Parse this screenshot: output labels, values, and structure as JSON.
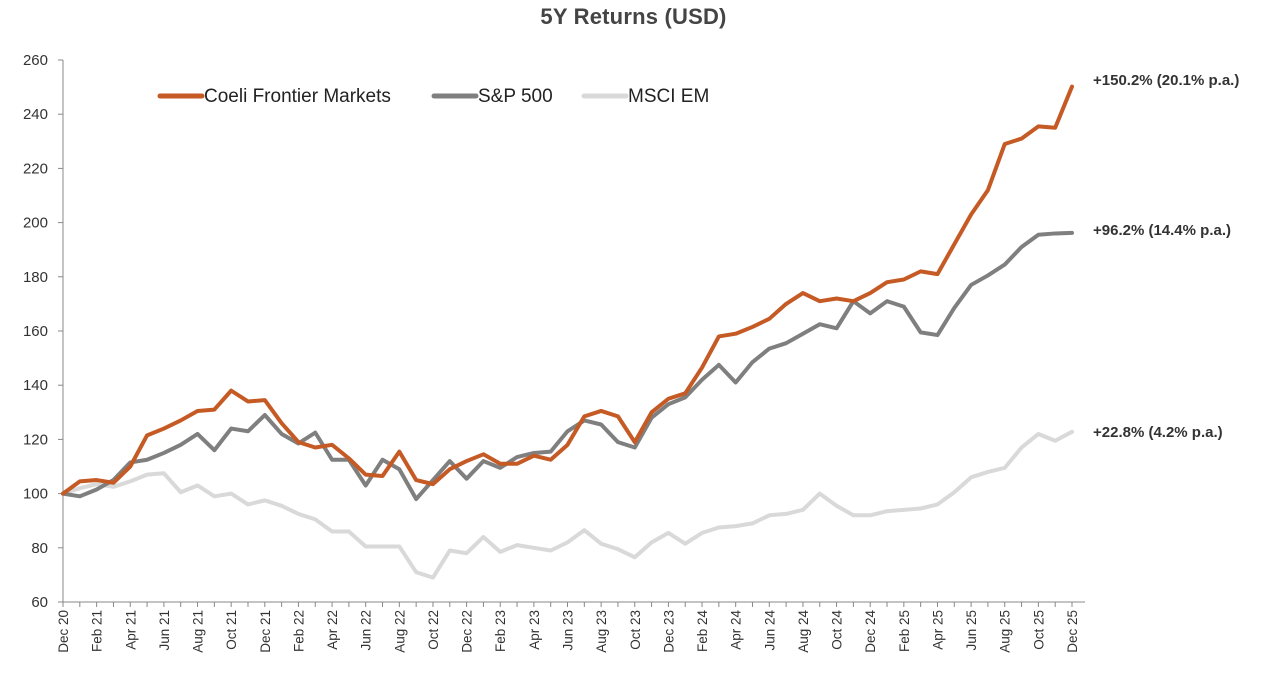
{
  "chart_data": {
    "type": "line",
    "title": "5Y Returns (USD)",
    "xlabel": "",
    "ylabel": "",
    "ylim": [
      60,
      260
    ],
    "y_ticks": [
      60,
      80,
      100,
      120,
      140,
      160,
      180,
      200,
      220,
      240,
      260
    ],
    "grid": false,
    "legend_position": "top-left",
    "x_tick_labels": [
      "Dec 20",
      "Feb 21",
      "Apr 21",
      "Jun 21",
      "Aug 21",
      "Oct 21",
      "Dec 21",
      "Feb 22",
      "Apr 22",
      "Jun 22",
      "Aug 22",
      "Oct 22",
      "Dec 22",
      "Feb 23",
      "Apr 23",
      "Jun 23",
      "Aug 23",
      "Oct 23",
      "Dec 23",
      "Feb 24",
      "Apr 24",
      "Jun 24",
      "Aug 24",
      "Oct 24",
      "Dec 24",
      "Feb 25",
      "Apr 25",
      "Jun 25",
      "Aug 25",
      "Oct 25",
      "Dec 25"
    ],
    "series": [
      {
        "name": "Coeli Frontier Markets",
        "color": "#C55A25",
        "end_label": "+150.2% (20.1% p.a.)",
        "values": [
          100,
          104.5,
          105,
          104,
          110,
          121.5,
          124,
          127,
          130.5,
          131,
          138,
          134,
          134.5,
          126,
          119,
          117,
          118,
          113,
          107,
          106.5,
          115.5,
          105,
          103.5,
          109,
          112,
          114.5,
          111,
          111,
          114,
          112.5,
          118,
          128.5,
          130.5,
          128.5,
          119,
          130,
          135,
          137,
          146.5,
          158,
          159,
          161.5,
          164.5,
          170,
          174,
          171,
          172,
          171,
          174,
          178,
          179,
          182,
          181,
          192,
          203,
          212,
          229,
          231,
          235.5,
          235,
          250.2
        ]
      },
      {
        "name": "S&P 500",
        "color": "#7F7F7F",
        "end_label": "+96.2% (14.4% p.a.)",
        "values": [
          100,
          99,
          101.5,
          105,
          111.5,
          112.5,
          115,
          118,
          122,
          116,
          124,
          123,
          129,
          122,
          118.5,
          122.5,
          112.5,
          112.5,
          103,
          112.5,
          109,
          98,
          105,
          112,
          105.5,
          112,
          109.5,
          113.5,
          115,
          115.5,
          123,
          127,
          125.5,
          119,
          117,
          128,
          133,
          135.5,
          142,
          147.5,
          141,
          148.5,
          153.5,
          155.5,
          159,
          162.5,
          161,
          171,
          166.5,
          171,
          169,
          159.5,
          158.5,
          168.5,
          177,
          180.5,
          184.5,
          191,
          195.5,
          196,
          196.2
        ]
      },
      {
        "name": "MSCI EM",
        "color": "#D9D9D9",
        "end_label": "+22.8% (4.2% p.a.)",
        "values": [
          100,
          102,
          103.5,
          102.5,
          104.5,
          107,
          107.5,
          100.5,
          103,
          99,
          100,
          96,
          97.5,
          95.5,
          92.5,
          90.5,
          86,
          86,
          80.5,
          80.5,
          80.5,
          71,
          69,
          79,
          78,
          84,
          78.5,
          81,
          80,
          79,
          82,
          86.5,
          81.5,
          79.5,
          76.5,
          82,
          85.5,
          81.5,
          85.5,
          87.5,
          88,
          89,
          92,
          92.5,
          94,
          100,
          95.5,
          92,
          92,
          93.5,
          94,
          94.5,
          96,
          100.5,
          106,
          108,
          109.5,
          117,
          122,
          119.5,
          122.8
        ]
      }
    ]
  }
}
